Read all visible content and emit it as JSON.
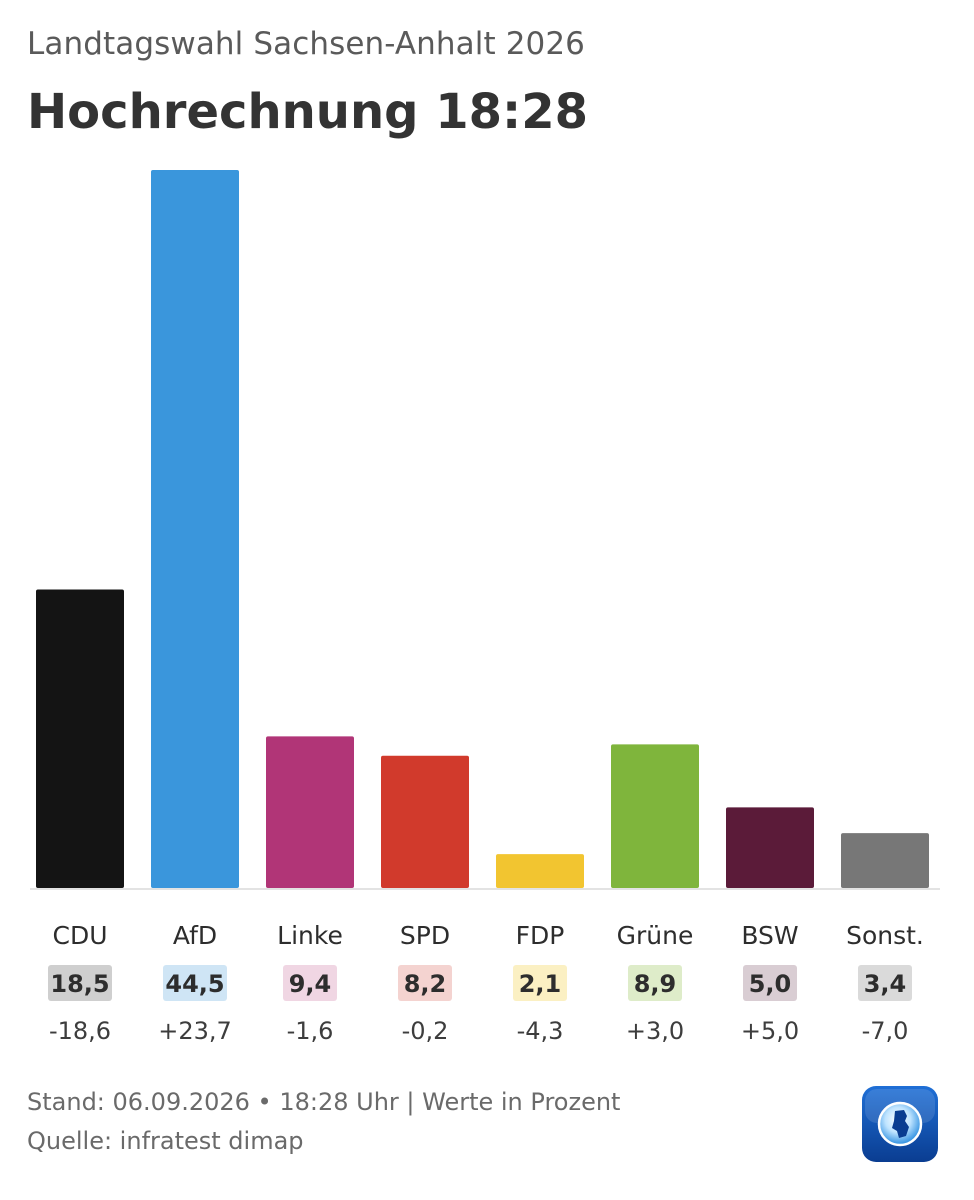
{
  "header": {
    "subtitle": "Landtagswahl Sachsen-Anhalt 2026",
    "title": "Hochrechnung 18:28"
  },
  "chart_data": {
    "type": "bar",
    "categories": [
      "CDU",
      "AfD",
      "Linke",
      "SPD",
      "FDP",
      "Grüne",
      "BSW",
      "Sonst."
    ],
    "values": [
      18.5,
      44.5,
      9.4,
      8.2,
      2.1,
      8.9,
      5.0,
      3.4
    ],
    "value_labels": [
      "18,5",
      "44,5",
      "9,4",
      "8,2",
      "2,1",
      "8,9",
      "5,0",
      "3,4"
    ],
    "changes": [
      "-18,6",
      "+23,7",
      "-1,6",
      "-0,2",
      "-4,3",
      "+3,0",
      "+5,0",
      "-7,0"
    ],
    "colors": [
      "#141414",
      "#3a96dc",
      "#b13577",
      "#d13a2c",
      "#f2c530",
      "#7fb53c",
      "#5b1b39",
      "#777777"
    ],
    "badge_colors": [
      "#cfcfcf",
      "#cfe5f5",
      "#f0d6e3",
      "#f4d3d0",
      "#fbf0c3",
      "#deecc9",
      "#d9cdd3",
      "#dadada"
    ],
    "ylim": [
      0,
      44.5
    ],
    "grid": false,
    "legend": "none"
  },
  "footer": {
    "stand": "Stand: 06.09.2026 • 18:28 Uhr | Werte in Prozent",
    "source": "Quelle: infratest dimap"
  },
  "logo": {
    "icon": "tagesschau-logo-icon",
    "color": "#0a3d91"
  }
}
